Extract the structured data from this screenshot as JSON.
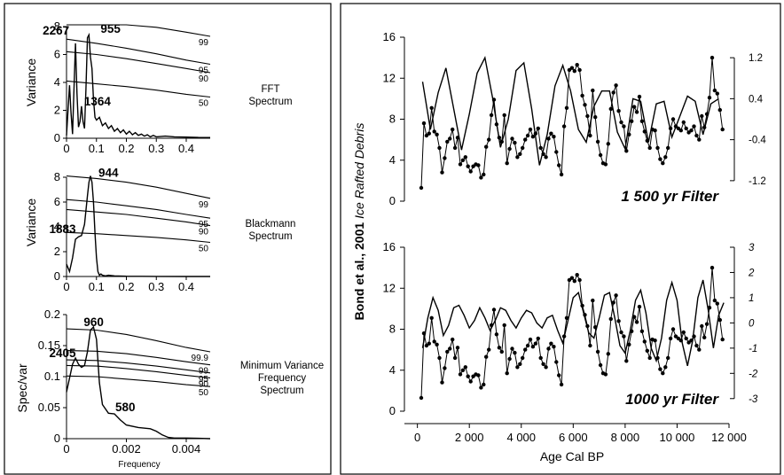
{
  "chart_data": [
    {
      "type": "line",
      "title": "FFT Spectrum",
      "title_lines": [
        "FFT",
        "Spectrum"
      ],
      "ylabel": "Variance",
      "xlim": [
        0,
        0.48
      ],
      "ylim": [
        0,
        8
      ],
      "xticks": [
        0,
        0.1,
        0.2,
        0.3,
        0.4
      ],
      "xtick_labels": [
        "0",
        "0.1",
        "0.2",
        "0.3",
        "0.4"
      ],
      "yticks": [
        0,
        2,
        4,
        6,
        8
      ],
      "ytick_labels": [
        "0",
        "2",
        "4",
        "6",
        "8"
      ],
      "spectrum": {
        "x": [
          0,
          0.005,
          0.01,
          0.015,
          0.02,
          0.025,
          0.03,
          0.035,
          0.04,
          0.045,
          0.05,
          0.055,
          0.06,
          0.065,
          0.07,
          0.075,
          0.08,
          0.085,
          0.09,
          0.095,
          0.1,
          0.11,
          0.12,
          0.13,
          0.14,
          0.15,
          0.16,
          0.17,
          0.18,
          0.19,
          0.2,
          0.21,
          0.22,
          0.23,
          0.24,
          0.25,
          0.26,
          0.27,
          0.28,
          0.29,
          0.3,
          0.33,
          0.36,
          0.4,
          0.44,
          0.48
        ],
        "y": [
          0.2,
          2.0,
          3.8,
          1.8,
          0.3,
          3.5,
          6.8,
          3.2,
          0.8,
          1.2,
          2.3,
          1.2,
          0.7,
          3.5,
          7.2,
          7.4,
          5.8,
          5.0,
          2.8,
          1.5,
          1.3,
          1.5,
          0.9,
          1.1,
          0.7,
          0.9,
          0.5,
          0.7,
          0.4,
          0.6,
          0.3,
          0.5,
          0.25,
          0.4,
          0.2,
          0.3,
          0.15,
          0.25,
          0.1,
          0.2,
          0.1,
          0.15,
          0.1,
          0.08,
          0.06,
          0.05
        ]
      },
      "significance_lines": [
        {
          "label": "99",
          "x": [
            0,
            0.1,
            0.2,
            0.3,
            0.4,
            0.48
          ],
          "y": [
            10.2,
            8.55,
            8.25,
            7.95,
            7.6,
            7.3
          ]
        },
        {
          "label": "95",
          "x": [
            0,
            0.1,
            0.2,
            0.3,
            0.4,
            0.48
          ],
          "y": [
            7.1,
            6.8,
            6.45,
            6.05,
            5.6,
            5.3
          ]
        },
        {
          "label": "90",
          "x": [
            0,
            0.1,
            0.2,
            0.3,
            0.4,
            0.48
          ],
          "y": [
            6.2,
            6.0,
            5.7,
            5.35,
            5.0,
            4.7
          ]
        },
        {
          "label": "50",
          "x": [
            0,
            0.1,
            0.2,
            0.3,
            0.4,
            0.48
          ],
          "y": [
            4.1,
            3.9,
            3.7,
            3.45,
            3.15,
            2.95
          ]
        }
      ],
      "annotations": [
        {
          "text": "2267",
          "x": 0.03,
          "y": 7.0
        },
        {
          "text": "955",
          "x": 0.075,
          "y": 7.5
        },
        {
          "text": "1364",
          "x": 0.05,
          "y": 2.3
        }
      ]
    },
    {
      "type": "line",
      "title": "Blackmann Spectrum",
      "title_lines": [
        "Blackmann",
        "Spectrum"
      ],
      "ylabel": "Variance",
      "xlim": [
        0,
        0.48
      ],
      "ylim": [
        0,
        8
      ],
      "xticks": [
        0,
        0.1,
        0.2,
        0.3,
        0.4
      ],
      "xtick_labels": [
        "0",
        "0.1",
        "0.2",
        "0.3",
        "0.4"
      ],
      "yticks": [
        0,
        2,
        4,
        6,
        8
      ],
      "ytick_labels": [
        "0",
        "2",
        "4",
        "6",
        "8"
      ],
      "spectrum": {
        "x": [
          0,
          0.01,
          0.02,
          0.03,
          0.04,
          0.05,
          0.06,
          0.07,
          0.075,
          0.08,
          0.085,
          0.09,
          0.095,
          0.1,
          0.105,
          0.11,
          0.115,
          0.12,
          0.13,
          0.14,
          0.16,
          0.2,
          0.3,
          0.4,
          0.48
        ],
        "y": [
          1.0,
          0.4,
          1.5,
          3.0,
          3.2,
          3.3,
          4.2,
          6.5,
          7.6,
          8.1,
          7.6,
          6.0,
          3.5,
          1.5,
          0.4,
          0.1,
          0.2,
          0.1,
          0.05,
          0.1,
          0.05,
          0.02,
          0.01,
          0.0,
          0.0
        ]
      },
      "significance_lines": [
        {
          "label": "99",
          "x": [
            0,
            0.1,
            0.2,
            0.3,
            0.4,
            0.48
          ],
          "y": [
            8.1,
            7.9,
            7.6,
            7.2,
            6.7,
            6.3
          ]
        },
        {
          "label": "95",
          "x": [
            0,
            0.1,
            0.2,
            0.3,
            0.4,
            0.48
          ],
          "y": [
            6.2,
            6.0,
            5.7,
            5.4,
            5.0,
            4.7
          ]
        },
        {
          "label": "90",
          "x": [
            0,
            0.1,
            0.2,
            0.3,
            0.4,
            0.48
          ],
          "y": [
            5.4,
            5.2,
            5.0,
            4.7,
            4.4,
            4.1
          ]
        },
        {
          "label": "50",
          "x": [
            0,
            0.1,
            0.2,
            0.3,
            0.4,
            0.48
          ],
          "y": [
            3.55,
            3.45,
            3.3,
            3.15,
            2.95,
            2.75
          ]
        }
      ],
      "annotations": [
        {
          "text": "944",
          "x": 0.08,
          "y": 8.1
        },
        {
          "text": "1883",
          "x": 0.04,
          "y": 3.3
        }
      ]
    },
    {
      "type": "line",
      "title": "Minimum Variance Frequency Spectrum",
      "title_lines": [
        "Minimum Variance",
        "Frequency",
        "Spectrum"
      ],
      "ylabel": "Spec/var",
      "xlabel": "Frequency",
      "xlim": [
        0,
        0.0048
      ],
      "ylim": [
        0,
        0.2
      ],
      "xticks": [
        0,
        0.002,
        0.004
      ],
      "xtick_labels": [
        "0",
        "0.002",
        "0.004"
      ],
      "yticks": [
        0,
        0.05,
        0.1,
        0.15,
        0.2
      ],
      "ytick_labels": [
        "0",
        "0.05",
        "0.1",
        "0.15",
        "0.2"
      ],
      "spectrum": {
        "x": [
          0,
          0.0002,
          0.0003,
          0.0004,
          0.0005,
          0.0006,
          0.0007,
          0.0008,
          0.0009,
          0.001,
          0.0011,
          0.0012,
          0.0014,
          0.0016,
          0.0018,
          0.002,
          0.0024,
          0.0028,
          0.003,
          0.0032,
          0.0034,
          0.0036,
          0.004,
          0.0044,
          0.0048
        ],
        "y": [
          0.075,
          0.12,
          0.13,
          0.12,
          0.115,
          0.118,
          0.14,
          0.175,
          0.18,
          0.16,
          0.09,
          0.055,
          0.041,
          0.04,
          0.03,
          0.022,
          0.018,
          0.016,
          0.012,
          0.006,
          0.002,
          0.001,
          0.001,
          0.0005,
          0.0
        ]
      },
      "significance_lines": [
        {
          "label": "99.9",
          "x": [
            0,
            0.001,
            0.002,
            0.003,
            0.004,
            0.0048
          ],
          "y": [
            0.177,
            0.175,
            0.168,
            0.158,
            0.147,
            0.14
          ]
        },
        {
          "label": "99",
          "x": [
            0,
            0.001,
            0.002,
            0.003,
            0.004,
            0.0048
          ],
          "y": [
            0.142,
            0.141,
            0.137,
            0.131,
            0.124,
            0.119
          ]
        },
        {
          "label": "95",
          "x": [
            0,
            0.001,
            0.002,
            0.003,
            0.004,
            0.0048
          ],
          "y": [
            0.127,
            0.126,
            0.122,
            0.117,
            0.111,
            0.106
          ]
        },
        {
          "label": "90",
          "x": [
            0,
            0.001,
            0.002,
            0.003,
            0.004,
            0.0048
          ],
          "y": [
            0.118,
            0.117,
            0.113,
            0.108,
            0.102,
            0.098
          ]
        },
        {
          "label": "50",
          "x": [
            0,
            0.001,
            0.002,
            0.003,
            0.004,
            0.0048
          ],
          "y": [
            0.101,
            0.1,
            0.096,
            0.092,
            0.087,
            0.084
          ]
        }
      ],
      "annotations": [
        {
          "text": "960",
          "x": 0.0009,
          "y": 0.18
        },
        {
          "text": "2405",
          "x": 0.0004,
          "y": 0.13
        },
        {
          "text": "580",
          "x": 0.0016,
          "y": 0.043
        }
      ]
    },
    {
      "type": "line",
      "title": "1 500 yr Filter",
      "xlim": [
        -500,
        12000
      ],
      "ylim": [
        0,
        16
      ],
      "yticks": [
        0,
        4,
        8,
        12,
        16
      ],
      "ytick_labels": [
        "0",
        "4",
        "8",
        "12",
        "16"
      ],
      "y2lim": [
        -1.6,
        1.6
      ],
      "y2ticks": [
        -1.2,
        -0.4,
        0.4,
        1.2
      ],
      "y2tick_labels": [
        "-1.2",
        "-0.4",
        "0.4",
        "1.2"
      ],
      "filtered_series": {
        "x": [
          200,
          500,
          800,
          1100,
          1400,
          1700,
          2000,
          2300,
          2600,
          2900,
          3200,
          3500,
          3800,
          4100,
          4400,
          4700,
          5000,
          5300,
          5600,
          5900,
          6200,
          6500,
          6800,
          7100,
          7400,
          7700,
          8000,
          8300,
          8600,
          8900,
          9200,
          9500,
          9800,
          10100,
          10400,
          10700,
          11000,
          11300,
          11600
        ],
        "y": [
          0.73,
          -0.2,
          0.52,
          1.0,
          0.2,
          -0.6,
          0.1,
          0.9,
          1.2,
          0.4,
          -0.55,
          0.0,
          0.95,
          1.1,
          0.2,
          -0.9,
          -0.3,
          0.65,
          1.05,
          0.55,
          -0.2,
          -0.45,
          0.25,
          0.55,
          0.55,
          -0.25,
          -0.58,
          0.4,
          0.35,
          -0.45,
          0.3,
          0.35,
          -0.35,
          0.05,
          0.45,
          0.35,
          -0.3,
          0.3,
          0.4
        ]
      }
    },
    {
      "type": "line",
      "title": "1000 yr Filter",
      "xlabel": "Age Cal BP",
      "ylabel": "Bond et al., 2001 Ice Rafted Debris",
      "ylabel_parts": [
        "Bond et al., 2001",
        "Ice Rafted Debris"
      ],
      "xlim": [
        -500,
        12000
      ],
      "ylim": [
        0,
        16
      ],
      "xticks": [
        0,
        2000,
        4000,
        6000,
        8000,
        10000,
        12000
      ],
      "xtick_labels": [
        "0",
        "2 000",
        "4 000",
        "6 000",
        "8 000",
        "10 000",
        "12 000"
      ],
      "yticks": [
        0,
        4,
        8,
        12,
        16
      ],
      "ytick_labels": [
        "0",
        "4",
        "8",
        "12",
        "16"
      ],
      "y2lim": [
        -3.5,
        3
      ],
      "y2ticks": [
        -3,
        -2,
        -1,
        0,
        1,
        2,
        3
      ],
      "y2tick_labels": [
        "-3",
        "-2",
        "-1",
        "0",
        "1",
        "2",
        "3"
      ],
      "filtered_series": {
        "x": [
          200,
          400,
          600,
          800,
          1000,
          1200,
          1400,
          1600,
          1800,
          2000,
          2200,
          2400,
          2600,
          2800,
          3000,
          3200,
          3400,
          3600,
          3800,
          4000,
          4200,
          4400,
          4600,
          4800,
          5000,
          5200,
          5400,
          5600,
          5800,
          6000,
          6200,
          6400,
          6600,
          6800,
          7000,
          7200,
          7400,
          7600,
          7800,
          8000,
          8200,
          8400,
          8600,
          8800,
          9000,
          9200,
          9400,
          9600,
          9800,
          10000,
          10200,
          10400,
          10600,
          10800,
          11000,
          11200,
          11400,
          11600,
          11800
        ],
        "y": [
          -1.0,
          0.2,
          1.0,
          0.5,
          -0.5,
          -0.1,
          0.6,
          0.7,
          0.3,
          -0.2,
          0.1,
          0.6,
          0.2,
          -0.3,
          0.1,
          0.6,
          0.5,
          0.1,
          -0.2,
          0.2,
          0.5,
          0.4,
          0.0,
          -0.2,
          0.2,
          0.3,
          -0.3,
          -0.8,
          0.1,
          1.0,
          1.2,
          0.4,
          -0.4,
          -0.6,
          0.2,
          1.1,
          1.2,
          0.2,
          -0.9,
          -1.2,
          -0.3,
          0.9,
          1.3,
          0.4,
          -1.0,
          -1.5,
          -0.6,
          0.9,
          1.6,
          0.9,
          -0.8,
          -1.7,
          -0.7,
          1.0,
          1.7,
          0.5,
          -1.0,
          0.3,
          0.8
        ]
      }
    }
  ],
  "ird_series": {
    "x": [
      150,
      250,
      350,
      450,
      550,
      650,
      750,
      850,
      950,
      1050,
      1150,
      1250,
      1350,
      1450,
      1550,
      1650,
      1750,
      1850,
      1950,
      2050,
      2150,
      2250,
      2350,
      2450,
      2550,
      2650,
      2750,
      2850,
      2950,
      3050,
      3150,
      3250,
      3350,
      3450,
      3550,
      3650,
      3750,
      3850,
      3950,
      4050,
      4150,
      4250,
      4350,
      4450,
      4550,
      4650,
      4750,
      4850,
      4950,
      5050,
      5150,
      5250,
      5350,
      5450,
      5550,
      5650,
      5750,
      5850,
      5950,
      6050,
      6150,
      6250,
      6350,
      6450,
      6550,
      6650,
      6750,
      6850,
      6950,
      7050,
      7150,
      7250,
      7350,
      7450,
      7550,
      7650,
      7750,
      7850,
      7950,
      8050,
      8150,
      8250,
      8350,
      8450,
      8550,
      8650,
      8750,
      8850,
      8950,
      9050,
      9150,
      9250,
      9350,
      9450,
      9550,
      9650,
      9750,
      9850,
      9950,
      10050,
      10150,
      10250,
      10350,
      10450,
      10550,
      10650,
      10750,
      10850,
      10950,
      11050,
      11150,
      11250,
      11350,
      11450,
      11550,
      11650,
      11750
    ],
    "y": [
      1.3,
      7.6,
      6.4,
      6.6,
      9.1,
      6.8,
      6.5,
      5.2,
      2.8,
      4.2,
      5.8,
      6.1,
      7.0,
      5.2,
      6.2,
      3.6,
      4.0,
      4.3,
      3.4,
      2.9,
      3.4,
      3.6,
      3.5,
      2.3,
      2.6,
      5.3,
      6.0,
      8.4,
      9.9,
      7.5,
      6.2,
      5.8,
      8.4,
      3.7,
      5.1,
      6.1,
      5.7,
      4.3,
      4.6,
      5.2,
      6.0,
      6.4,
      7.0,
      6.3,
      6.6,
      7.1,
      5.2,
      4.6,
      4.3,
      6.1,
      6.6,
      6.3,
      4.8,
      3.5,
      2.6,
      7.3,
      9.1,
      12.8,
      13.0,
      12.7,
      13.3,
      12.8,
      10.3,
      9.4,
      8.3,
      6.4,
      10.8,
      8.2,
      5.8,
      4.5,
      3.7,
      3.6,
      5.6,
      9.0,
      10.6,
      11.3,
      8.8,
      7.7,
      7.3,
      4.9,
      6.5,
      7.8,
      9.2,
      8.7,
      10.2,
      7.8,
      6.8,
      5.9,
      5.2,
      7.0,
      6.9,
      5.2,
      4.1,
      3.7,
      4.3,
      5.2,
      7.1,
      8.0,
      7.3,
      7.1,
      6.9,
      7.7,
      7.1,
      6.7,
      6.9,
      7.3,
      6.4,
      6.0,
      8.3,
      7.2,
      8.5,
      10.1,
      14.0,
      10.8,
      10.5,
      8.9,
      7.0
    ]
  }
}
